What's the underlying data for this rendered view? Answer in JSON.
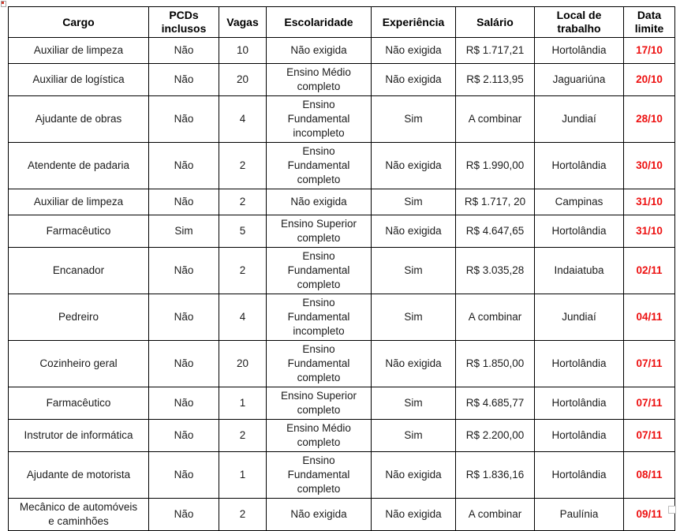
{
  "colors": {
    "date_red": "#ed1111",
    "grid_border": "#000000",
    "background": "#ffffff"
  },
  "icons": {
    "top_left_marker": "broken-image-icon",
    "bottom_right_marker": "table-resize-handle"
  },
  "table": {
    "columns": [
      {
        "key": "cargo",
        "label": "Cargo"
      },
      {
        "key": "pcds",
        "label": "PCDs\ninclusos"
      },
      {
        "key": "vagas",
        "label": "Vagas"
      },
      {
        "key": "escolaridade",
        "label": "Escolaridade"
      },
      {
        "key": "experiencia",
        "label": "Experiência"
      },
      {
        "key": "salario",
        "label": "Salário"
      },
      {
        "key": "local",
        "label": "Local de\ntrabalho"
      },
      {
        "key": "data_limite",
        "label": "Data\nlimite"
      }
    ],
    "rows": [
      {
        "cargo": "Auxiliar de limpeza",
        "pcds": "Não",
        "vagas": "10",
        "escolaridade": "Não exigida",
        "experiencia": "Não exigida",
        "salario": "R$ 1.717,21",
        "local": "Hortolândia",
        "data_limite": "17/10"
      },
      {
        "cargo": "Auxiliar de logística",
        "pcds": "Não",
        "vagas": "20",
        "escolaridade": "Ensino Médio\ncompleto",
        "experiencia": "Não exigida",
        "salario": "R$ 2.113,95",
        "local": "Jaguariúna",
        "data_limite": "20/10"
      },
      {
        "cargo": "Ajudante de obras",
        "pcds": "Não",
        "vagas": "4",
        "escolaridade": "Ensino\nFundamental\nincompleto",
        "experiencia": "Sim",
        "salario": "A combinar",
        "local": "Jundiaí",
        "data_limite": "28/10"
      },
      {
        "cargo": "Atendente de padaria",
        "pcds": "Não",
        "vagas": "2",
        "escolaridade": "Ensino\nFundamental\ncompleto",
        "experiencia": "Não exigida",
        "salario": "R$ 1.990,00",
        "local": "Hortolândia",
        "data_limite": "30/10"
      },
      {
        "cargo": "Auxiliar de limpeza",
        "pcds": "Não",
        "vagas": "2",
        "escolaridade": "Não exigida",
        "experiencia": "Sim",
        "salario": "R$ 1.717, 20",
        "local": "Campinas",
        "data_limite": "31/10"
      },
      {
        "cargo": "Farmacêutico",
        "pcds": "Sim",
        "vagas": "5",
        "escolaridade": "Ensino Superior\ncompleto",
        "experiencia": "Não exigida",
        "salario": "R$ 4.647,65",
        "local": "Hortolândia",
        "data_limite": "31/10"
      },
      {
        "cargo": "Encanador",
        "pcds": "Não",
        "vagas": "2",
        "escolaridade": "Ensino\nFundamental\ncompleto",
        "experiencia": "Sim",
        "salario": "R$ 3.035,28",
        "local": "Indaiatuba",
        "data_limite": "02/11"
      },
      {
        "cargo": "Pedreiro",
        "pcds": "Não",
        "vagas": "4",
        "escolaridade": "Ensino\nFundamental\nincompleto",
        "experiencia": "Sim",
        "salario": "A combinar",
        "local": "Jundiaí",
        "data_limite": "04/11"
      },
      {
        "cargo": "Cozinheiro geral",
        "pcds": "Não",
        "vagas": "20",
        "escolaridade": "Ensino\nFundamental\ncompleto",
        "experiencia": "Não exigida",
        "salario": "R$ 1.850,00",
        "local": "Hortolândia",
        "data_limite": "07/11"
      },
      {
        "cargo": "Farmacêutico",
        "pcds": "Não",
        "vagas": "1",
        "escolaridade": "Ensino Superior\ncompleto",
        "experiencia": "Sim",
        "salario": "R$ 4.685,77",
        "local": "Hortolândia",
        "data_limite": "07/11"
      },
      {
        "cargo": "Instrutor de informática",
        "pcds": "Não",
        "vagas": "2",
        "escolaridade": "Ensino Médio\ncompleto",
        "experiencia": "Sim",
        "salario": "R$ 2.200,00",
        "local": "Hortolândia",
        "data_limite": "07/11"
      },
      {
        "cargo": "Ajudante de motorista",
        "pcds": "Não",
        "vagas": "1",
        "escolaridade": "Ensino\nFundamental\ncompleto",
        "experiencia": "Não exigida",
        "salario": "R$ 1.836,16",
        "local": "Hortolândia",
        "data_limite": "08/11"
      },
      {
        "cargo": "Mecânico de automóveis\ne caminhões",
        "pcds": "Não",
        "vagas": "2",
        "escolaridade": "Não exigida",
        "experiencia": "Não exigida",
        "salario": "A combinar",
        "local": "Paulínia",
        "data_limite": "09/11"
      }
    ]
  }
}
